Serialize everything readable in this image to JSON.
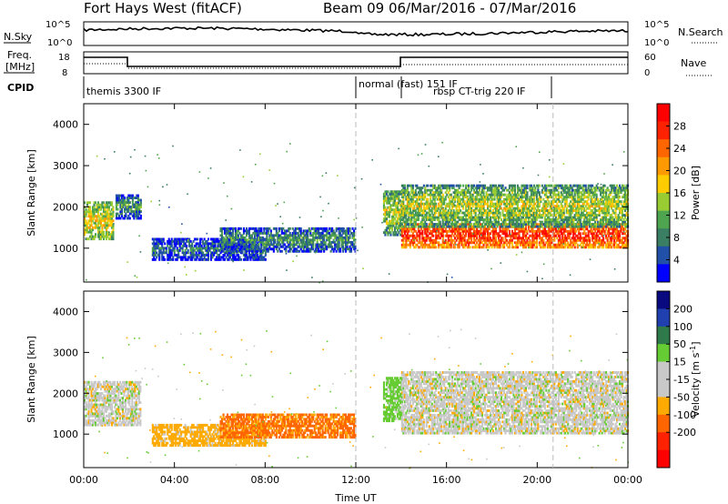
{
  "header": {
    "radar_title": "Fort Hays West (fitACF)",
    "beam_dates": "Beam 09  06/Mar/2016 - 07/Mar/2016"
  },
  "sky_panel": {
    "left_label": "N.Sky",
    "right_label": "N.Search",
    "left_ticks": [
      "10^5",
      "10^0"
    ],
    "right_ticks": [
      "10^5",
      "10^0"
    ]
  },
  "freq_panel": {
    "left_label_line1": "Freq.",
    "left_label_line2": "[MHz]",
    "left_ticks": [
      "18",
      "8"
    ],
    "right_label": "Nave",
    "right_ticks": [
      "60",
      "0"
    ]
  },
  "cpid_panel": {
    "label": "CPID",
    "modes": [
      {
        "name": "themis 3300 IF",
        "start_hour": 0,
        "end_hour": 12
      },
      {
        "name": "normal (fast) 151 IF",
        "start_hour": 12,
        "end_hour": 14
      },
      {
        "name": "rbsp CT-trig 220 IF",
        "start_hour": 14,
        "end_hour": 20.7
      }
    ]
  },
  "colors": {
    "power_scale": [
      "#0000ff",
      "#2050a8",
      "#3a7e63",
      "#4fa54f",
      "#99cc33",
      "#ffcc00",
      "#ff9900",
      "#ff6600",
      "#ff2200",
      "#ff0000"
    ],
    "velocity_scale": [
      "#0a0a80",
      "#2040b0",
      "#2f7a4a",
      "#66cc33",
      "#c8c8c8",
      "#c8c8c8",
      "#ffaa00",
      "#ff6600",
      "#ff2200",
      "#ff0000"
    ]
  },
  "chart_data": [
    {
      "type": "heatmap",
      "name": "power",
      "ylabel": "Slant Range [km]",
      "y_ticks": [
        1000,
        2000,
        3000,
        4000
      ],
      "ylim": [
        180,
        4500
      ],
      "xlim": [
        0,
        24
      ],
      "colorbar": {
        "label": "Power [dB]",
        "ticks": [
          4,
          8,
          12,
          16,
          20,
          24,
          28
        ],
        "range": [
          0,
          32
        ]
      },
      "echo_bands": [
        {
          "t_start": 0.0,
          "t_end": 1.3,
          "r_low": 1200,
          "r_high": 2100,
          "value": 18
        },
        {
          "t_start": 1.4,
          "t_end": 2.5,
          "r_low": 1700,
          "r_high": 2300,
          "value": 10
        },
        {
          "t_start": 3.0,
          "t_end": 8.0,
          "r_low": 700,
          "r_high": 1200,
          "value": 8
        },
        {
          "t_start": 6.0,
          "t_end": 12.0,
          "r_low": 900,
          "r_high": 1500,
          "value": 10
        },
        {
          "t_start": 13.2,
          "t_end": 14.0,
          "r_low": 1300,
          "r_high": 2400,
          "value": 16
        },
        {
          "t_start": 14.0,
          "t_end": 24.0,
          "r_low": 1000,
          "r_high": 1600,
          "value": 28
        },
        {
          "t_start": 14.0,
          "t_end": 24.0,
          "r_low": 1500,
          "r_high": 2500,
          "value": 16
        }
      ]
    },
    {
      "type": "heatmap",
      "name": "velocity",
      "ylabel": "Slant Range [km]",
      "y_ticks": [
        1000,
        2000,
        3000,
        4000
      ],
      "ylim": [
        180,
        4500
      ],
      "xlim": [
        0,
        24
      ],
      "colorbar": {
        "label": "Velocity [m s^-1]",
        "ticks": [
          200,
          100,
          50,
          15,
          -15,
          -50,
          -100,
          -200
        ]
      },
      "echo_bands": [
        {
          "t_start": 0.0,
          "t_end": 2.5,
          "r_low": 1200,
          "r_high": 2300,
          "value": 0
        },
        {
          "t_start": 3.0,
          "t_end": 8.0,
          "r_low": 700,
          "r_high": 1200,
          "value": -30
        },
        {
          "t_start": 6.0,
          "t_end": 12.0,
          "r_low": 900,
          "r_high": 1500,
          "value": -60
        },
        {
          "t_start": 13.2,
          "t_end": 14.0,
          "r_low": 1300,
          "r_high": 2400,
          "value": 30
        },
        {
          "t_start": 14.0,
          "t_end": 24.0,
          "r_low": 1000,
          "r_high": 2500,
          "value": 0
        }
      ]
    }
  ],
  "x_axis": {
    "label": "Time UT",
    "ticks": [
      "00:00",
      "04:00",
      "08:00",
      "12:00",
      "16:00",
      "20:00",
      "00:00"
    ],
    "tick_hours": [
      0,
      4,
      8,
      12,
      16,
      20,
      24
    ]
  }
}
